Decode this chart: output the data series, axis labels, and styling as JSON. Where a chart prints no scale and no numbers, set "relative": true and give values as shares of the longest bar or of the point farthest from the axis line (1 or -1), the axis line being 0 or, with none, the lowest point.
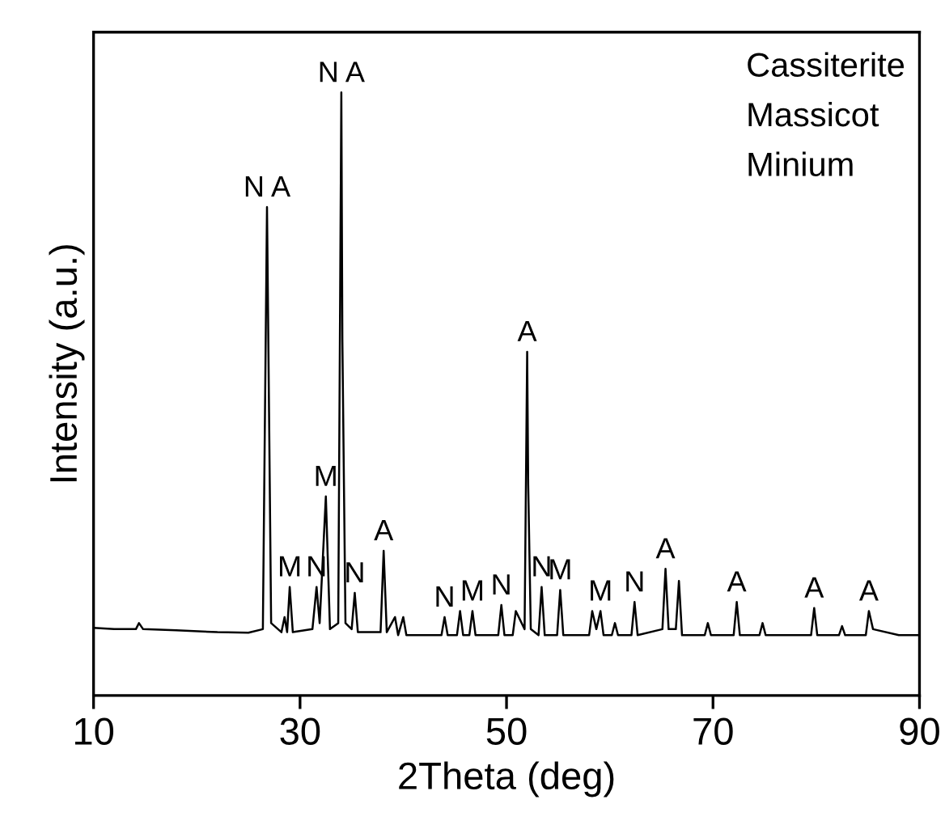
{
  "chart_data": {
    "type": "line",
    "relative": true,
    "xlabel": "2Theta (deg)",
    "ylabel": "Intensity (a.u.)",
    "xlim": [
      10,
      90
    ],
    "xticks": [
      10,
      30,
      50,
      70,
      90
    ],
    "x": [
      10,
      12,
      14.1,
      14.4,
      14.8,
      18,
      22,
      25,
      26.4,
      26.8,
      26.9,
      27.2,
      28.2,
      28.5,
      28.75,
      29.0,
      29.3,
      31.2,
      31.6,
      31.9,
      32.5,
      32.9,
      33.7,
      34.0,
      34.1,
      34.4,
      35.0,
      35.3,
      35.6,
      37.8,
      38.1,
      38.4,
      39.2,
      39.5,
      40.0,
      40.3,
      43.7,
      44.0,
      44.3,
      45.2,
      45.5,
      45.8,
      46.4,
      46.7,
      47.0,
      49.2,
      49.5,
      49.8,
      50.6,
      50.9,
      51.75,
      52.0,
      52.1,
      52.35,
      53.1,
      53.4,
      53.7,
      54.9,
      55.2,
      55.5,
      58.0,
      58.3,
      58.7,
      59.1,
      59.4,
      60.2,
      60.5,
      60.8,
      62.1,
      62.4,
      62.7,
      65.1,
      65.4,
      65.7,
      66.4,
      66.7,
      67.0,
      69.2,
      69.5,
      69.8,
      72.0,
      72.3,
      72.6,
      74.5,
      74.8,
      75.1,
      79.5,
      79.8,
      80.1,
      82.2,
      82.5,
      82.8,
      84.8,
      85.1,
      85.5,
      88,
      90
    ],
    "series": [
      {
        "color": "#000000",
        "values": [
          0.112,
          0.11,
          0.11,
          0.12,
          0.11,
          0.108,
          0.105,
          0.104,
          0.11,
          0.81,
          0.64,
          0.12,
          0.105,
          0.13,
          0.105,
          0.18,
          0.105,
          0.11,
          0.18,
          0.12,
          0.33,
          0.11,
          0.12,
          1.0,
          0.59,
          0.12,
          0.11,
          0.17,
          0.105,
          0.105,
          0.24,
          0.105,
          0.13,
          0.1,
          0.13,
          0.1,
          0.1,
          0.13,
          0.1,
          0.1,
          0.14,
          0.1,
          0.1,
          0.14,
          0.1,
          0.1,
          0.15,
          0.1,
          0.1,
          0.14,
          0.11,
          0.57,
          0.35,
          0.11,
          0.1,
          0.18,
          0.1,
          0.1,
          0.175,
          0.1,
          0.1,
          0.14,
          0.11,
          0.14,
          0.1,
          0.1,
          0.12,
          0.1,
          0.1,
          0.155,
          0.1,
          0.11,
          0.21,
          0.11,
          0.11,
          0.19,
          0.1,
          0.1,
          0.12,
          0.1,
          0.1,
          0.155,
          0.1,
          0.1,
          0.12,
          0.1,
          0.1,
          0.145,
          0.1,
          0.1,
          0.115,
          0.1,
          0.1,
          0.14,
          0.11,
          0.1,
          0.1
        ]
      }
    ],
    "annotations": [
      {
        "text": "N A",
        "x": 26.8,
        "y": 0.81
      },
      {
        "text": "N A",
        "x": 34.0,
        "y": 1.0
      },
      {
        "text": "M",
        "x": 29.0,
        "y": 0.18
      },
      {
        "text": "N",
        "x": 31.6,
        "y": 0.18
      },
      {
        "text": "M",
        "x": 32.5,
        "y": 0.33
      },
      {
        "text": "N",
        "x": 35.3,
        "y": 0.17
      },
      {
        "text": "A",
        "x": 38.1,
        "y": 0.24
      },
      {
        "text": "N",
        "x": 44.0,
        "y": 0.13
      },
      {
        "text": "M",
        "x": 46.7,
        "y": 0.14
      },
      {
        "text": "N",
        "x": 49.5,
        "y": 0.15
      },
      {
        "text": "A",
        "x": 52.0,
        "y": 0.57
      },
      {
        "text": "N",
        "x": 53.4,
        "y": 0.18
      },
      {
        "text": "M",
        "x": 55.2,
        "y": 0.175
      },
      {
        "text": "M",
        "x": 59.1,
        "y": 0.14
      },
      {
        "text": "N",
        "x": 62.4,
        "y": 0.155
      },
      {
        "text": "A",
        "x": 65.4,
        "y": 0.21
      },
      {
        "text": "A",
        "x": 72.3,
        "y": 0.155
      },
      {
        "text": "A",
        "x": 79.8,
        "y": 0.145
      },
      {
        "text": "A",
        "x": 85.1,
        "y": 0.14
      },
      "Cassiterite",
      "Massicot",
      "Minium"
    ]
  }
}
